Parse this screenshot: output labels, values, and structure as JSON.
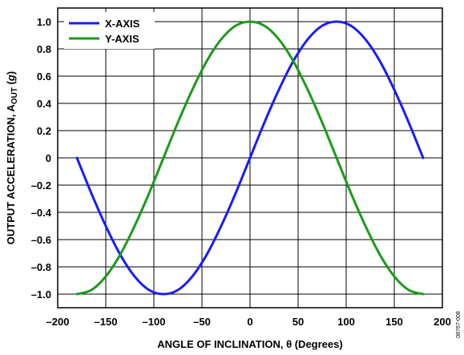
{
  "chart_data": {
    "type": "line",
    "xlabel": "ANGLE OF INCLINATION, θ (Degrees)",
    "ylabel_main": "OUTPUT ACCELERATION, A",
    "ylabel_sub": "OUT",
    "ylabel_unit_open": " (",
    "ylabel_unit": "g",
    "ylabel_unit_close": ")",
    "xlim": [
      -200,
      200
    ],
    "ylim": [
      -1.1,
      1.1
    ],
    "x_ticks": [
      -200,
      -150,
      -100,
      -50,
      0,
      50,
      100,
      150,
      200
    ],
    "x_tick_labels": [
      "–200",
      "–150",
      "–100",
      "–50",
      "0",
      "50",
      "100",
      "150",
      "200"
    ],
    "y_ticks": [
      1.0,
      0.8,
      0.6,
      0.4,
      0.2,
      0,
      -0.2,
      -0.4,
      -0.6,
      -0.8,
      -1.0
    ],
    "y_tick_labels": [
      "1.0",
      "0.8",
      "0.6",
      "0.4",
      "0.2",
      "0",
      "–0.2",
      "–0.4",
      "–0.6",
      "–0.8",
      "–1.0"
    ],
    "grid": true,
    "legend_position": "top-left",
    "series": [
      {
        "name": "X-AXIS",
        "color": "#1a1aff",
        "x": [
          -180,
          -165,
          -150,
          -135,
          -120,
          -105,
          -90,
          -75,
          -60,
          -45,
          -30,
          -15,
          0,
          15,
          30,
          45,
          60,
          75,
          90,
          105,
          120,
          135,
          150,
          165,
          180
        ],
        "y": [
          0,
          -0.26,
          -0.5,
          -0.71,
          -0.87,
          -0.97,
          -1.0,
          -0.97,
          -0.87,
          -0.71,
          -0.5,
          -0.26,
          0,
          0.26,
          0.5,
          0.71,
          0.87,
          0.97,
          1.0,
          0.97,
          0.87,
          0.71,
          0.5,
          0.26,
          0
        ]
      },
      {
        "name": "Y-AXIS",
        "color": "#1a9a1a",
        "x": [
          -180,
          -165,
          -150,
          -135,
          -120,
          -105,
          -90,
          -75,
          -60,
          -45,
          -30,
          -15,
          0,
          15,
          30,
          45,
          60,
          75,
          90,
          105,
          120,
          135,
          150,
          165,
          180
        ],
        "y": [
          -1.0,
          -0.97,
          -0.87,
          -0.71,
          -0.5,
          -0.26,
          0,
          0.26,
          0.5,
          0.71,
          0.87,
          0.97,
          1.0,
          0.97,
          0.87,
          0.71,
          0.5,
          0.26,
          0,
          -0.26,
          -0.5,
          -0.71,
          -0.87,
          -0.97,
          -1.0
        ]
      }
    ]
  },
  "figure_code": "08767-008"
}
